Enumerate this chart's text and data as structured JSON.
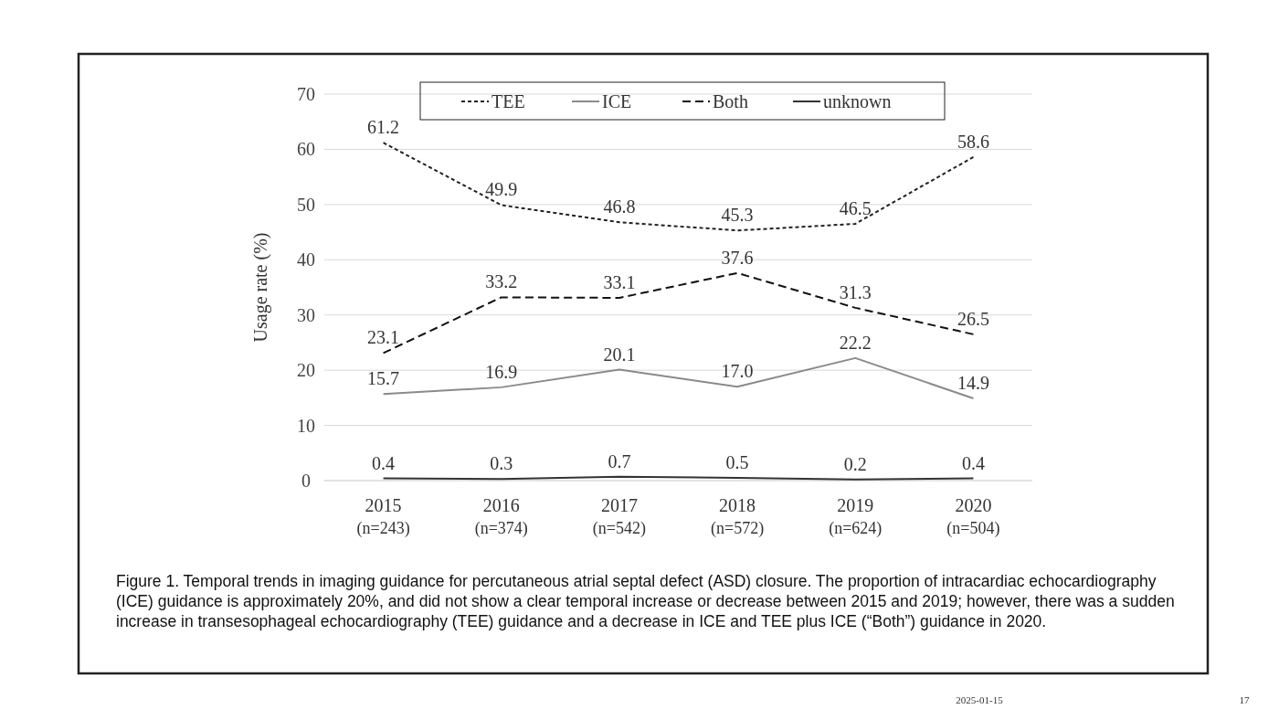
{
  "chart_data": {
    "type": "line",
    "ylabel": "Usage rate  (%)",
    "categories": [
      "2015\n(n=243)",
      "2016\n(n=374)",
      "2017\n(n=542)",
      "2018\n(n=572)",
      "2019\n(n=624)",
      "2020\n(n=504)"
    ],
    "series": [
      {
        "name": "TEE",
        "color": "#222222",
        "line_style": "dotted",
        "values": [
          61.2,
          49.9,
          46.8,
          45.3,
          46.5,
          58.6
        ]
      },
      {
        "name": "ICE",
        "color": "#8a8a8a",
        "line_style": "solid",
        "values": [
          15.7,
          16.9,
          20.1,
          17.0,
          22.2,
          14.9
        ]
      },
      {
        "name": "Both",
        "color": "#111111",
        "line_style": "dashed",
        "values": [
          23.1,
          33.2,
          33.1,
          37.6,
          31.3,
          26.5
        ]
      },
      {
        "name": "unknown",
        "color": "#333333",
        "line_style": "solid",
        "values": [
          0.4,
          0.3,
          0.7,
          0.5,
          0.2,
          0.4
        ]
      }
    ],
    "value_labels": [
      [
        "61.2",
        "49.9",
        "46.8",
        "45.3",
        "46.5",
        "58.6"
      ],
      [
        "15.7",
        "16.9",
        "20.1",
        "17.0",
        "22.2",
        "14.9"
      ],
      [
        "23.1",
        "33.2",
        "33.1",
        "37.6",
        "31.3",
        "26.5"
      ],
      [
        "0.4",
        "0.3",
        "0.7",
        "0.5",
        "0.2",
        "0.4"
      ]
    ],
    "ylim": [
      0,
      70
    ],
    "yticks": [
      0,
      10,
      20,
      30,
      40,
      50,
      60,
      70
    ],
    "grid": "y",
    "legend": "top",
    "marker": "none",
    "annotations": [
      "Figure 1. Temporal trends in imaging guidance for percutaneous atrial septal defect (ASD) closure. The proportion of intracardiac echocardiography (ICE) guidance is approximately 20%, and did not show a clear temporal increase or decrease between 2015 and 2019; however, there was a sudden increase in transesophageal echocardiography (TEE) guidance and a decrease in ICE and TEE plus ICE (“Both”) guidance in 2020.",
      "2025-01-15",
      "17"
    ]
  }
}
